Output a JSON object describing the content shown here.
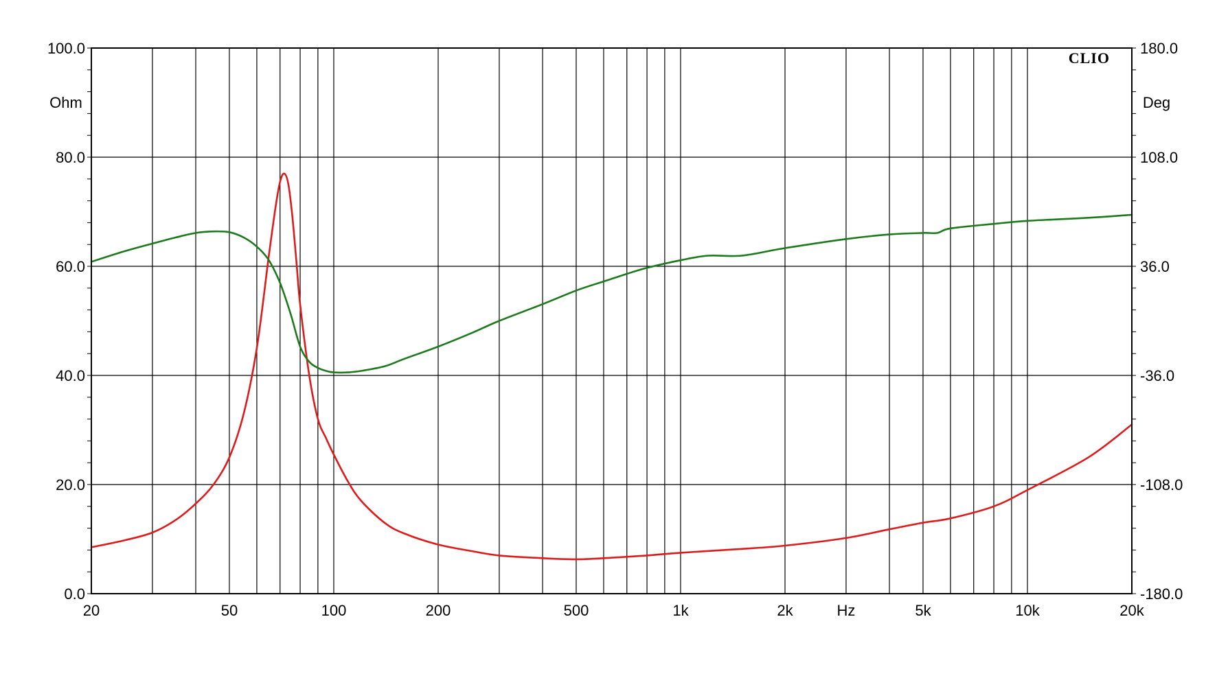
{
  "chart_data": {
    "type": "line",
    "brand": "CLIO",
    "x_scale": "log",
    "xlim": [
      20,
      20000
    ],
    "ylim_left": [
      0,
      100
    ],
    "ylim_right": [
      -180,
      180
    ],
    "y_left_unit": "Ohm",
    "y_right_unit": "Deg",
    "x_unit": "Hz",
    "grid": true,
    "x_ticks": [
      {
        "value": 20,
        "label": "20"
      },
      {
        "value": 50,
        "label": "50"
      },
      {
        "value": 100,
        "label": "100"
      },
      {
        "value": 200,
        "label": "200"
      },
      {
        "value": 500,
        "label": "500"
      },
      {
        "value": 1000,
        "label": "1k"
      },
      {
        "value": 2000,
        "label": "2k"
      },
      {
        "value": 3000,
        "label": "Hz"
      },
      {
        "value": 5000,
        "label": "5k"
      },
      {
        "value": 10000,
        "label": "10k"
      },
      {
        "value": 20000,
        "label": "20k"
      }
    ],
    "x_gridlines": [
      20,
      30,
      40,
      50,
      60,
      70,
      80,
      90,
      100,
      200,
      300,
      400,
      500,
      600,
      700,
      800,
      900,
      1000,
      2000,
      3000,
      4000,
      5000,
      6000,
      7000,
      8000,
      9000,
      10000,
      20000
    ],
    "y_left_ticks": [
      "0.0",
      "20.0",
      "40.0",
      "60.0",
      "80.0",
      "100.0"
    ],
    "y_left_tick_values": [
      0,
      20,
      40,
      60,
      80,
      100
    ],
    "y_right_ticks": [
      "-180.0",
      "-108.0",
      "-36.0",
      "36.0",
      "108.0",
      "180.0"
    ],
    "y_right_tick_values": [
      -180,
      -108,
      -36,
      36,
      108,
      180
    ],
    "colors": {
      "impedance": "#dd1b1b",
      "phase": "#1c7a1c",
      "grid": "#000000"
    },
    "series": [
      {
        "axis": "left",
        "color": "#dd1b1b",
        "x": [
          20,
          25,
          30,
          35,
          40,
          45,
          50,
          55,
          60,
          65,
          68,
          70,
          72,
          74,
          76,
          78,
          80,
          85,
          90,
          95,
          100,
          110,
          120,
          140,
          160,
          200,
          250,
          300,
          400,
          500,
          600,
          800,
          1000,
          1500,
          2000,
          3000,
          4000,
          5000,
          6000,
          8000,
          10000,
          15000,
          20000
        ],
        "y": [
          8.5,
          9.8,
          11.2,
          13.5,
          16.5,
          20.0,
          25.0,
          33.0,
          45.0,
          62.0,
          71.0,
          75.5,
          77.0,
          75.0,
          69.0,
          61.0,
          53.0,
          40.0,
          32.0,
          28.5,
          25.5,
          20.5,
          17.0,
          13.0,
          11.0,
          9.0,
          7.8,
          7.0,
          6.5,
          6.3,
          6.5,
          7.0,
          7.5,
          8.2,
          8.8,
          10.2,
          11.8,
          13.0,
          13.8,
          16.0,
          19.0,
          25.0,
          31.0
        ]
      },
      {
        "axis": "right",
        "color": "#1c7a1c",
        "x": [
          20,
          25,
          30,
          35,
          40,
          45,
          50,
          55,
          60,
          65,
          70,
          75,
          80,
          85,
          90,
          95,
          100,
          110,
          120,
          140,
          160,
          200,
          250,
          300,
          400,
          500,
          600,
          700,
          800,
          1000,
          1200,
          1500,
          2000,
          3000,
          4000,
          5000,
          5500,
          6000,
          8000,
          10000,
          15000,
          20000
        ],
        "y": [
          39,
          46,
          51,
          55,
          58,
          59,
          58.5,
          55,
          49,
          40,
          25,
          5,
          -17,
          -27,
          -31,
          -33,
          -34,
          -34,
          -33,
          -30,
          -25,
          -17,
          -8,
          0,
          11,
          20,
          26,
          31,
          35,
          40,
          43,
          43,
          48,
          54,
          57,
          58,
          58,
          61,
          64,
          66,
          68,
          70
        ]
      }
    ]
  }
}
